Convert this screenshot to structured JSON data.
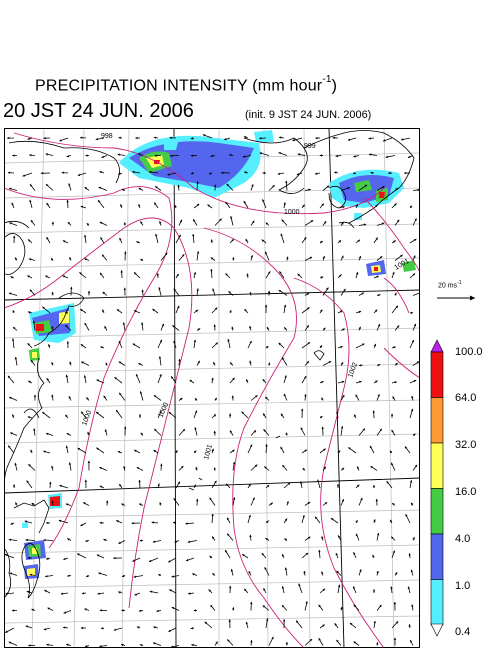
{
  "title": {
    "main": "PRECIPITATION INTENSITY (mm hour",
    "unit_sup": "-1",
    "close": ")",
    "datetime": "20 JST 24 JUN. 2006",
    "init": "(init. 9 JST 24 JUN. 2006)"
  },
  "wind_scale": {
    "label": "20 ms",
    "label_sup": "-1",
    "speed": 20
  },
  "legend": {
    "levels": [
      "100.0",
      "64.0",
      "32.0",
      "16.0",
      "4.0",
      "1.0",
      "0.4"
    ],
    "colors": [
      "#ee1111",
      "#ff9933",
      "#ffff55",
      "#44cc44",
      "#5566ee",
      "#55eeff",
      "#ffffff"
    ],
    "top_color": "#bb22ee"
  },
  "isobars": {
    "color": "#cc2277",
    "labels": [
      "998",
      "1000",
      "1000",
      "1000",
      "1001",
      "1001",
      "1002",
      "999"
    ]
  },
  "wind_field": {
    "color": "#000000",
    "description": "quiver"
  }
}
